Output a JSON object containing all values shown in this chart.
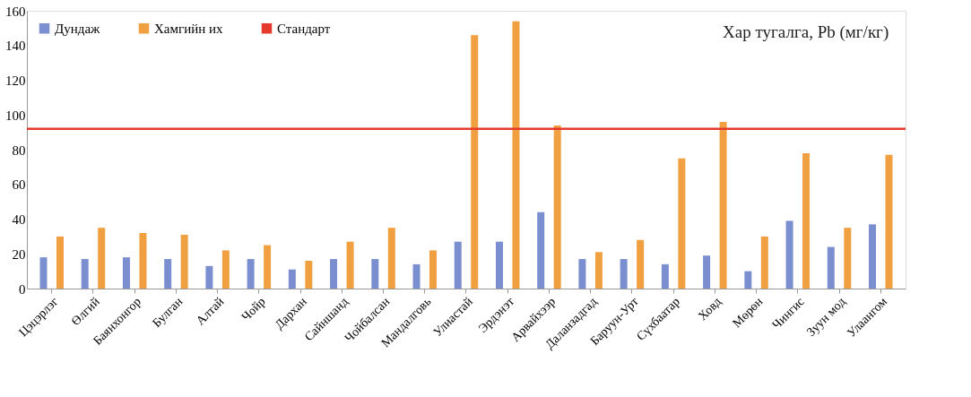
{
  "chart_data": {
    "type": "bar",
    "title": "Хар тугалга, Pb (мг/кг)",
    "categories": [
      "Цэцэрлэг",
      "Өлгий",
      "Баянхонгор",
      "Булган",
      "Алтай",
      "Чойр",
      "Дархан",
      "Сайншанд",
      "Чойбалсан",
      "Мандалговь",
      "Улиастай",
      "Эрдэнэт",
      "Арвайхээр",
      "Даланзадгад",
      "Баруун-Урт",
      "Сүхбаатар",
      "Ховд",
      "Мөрөн",
      "Чингис",
      "Зуун мод",
      "Улаангом"
    ],
    "series": [
      {
        "name": "Дундаж",
        "color": "#7b8fd0",
        "values": [
          18,
          17,
          18,
          17,
          13,
          17,
          11,
          17,
          17,
          14,
          27,
          27,
          44,
          17,
          17,
          14,
          19,
          10,
          39,
          24,
          37
        ]
      },
      {
        "name": "Хамгийн их",
        "color": "#f0a040",
        "values": [
          30,
          35,
          32,
          31,
          22,
          25,
          16,
          27,
          35,
          22,
          146,
          154,
          94,
          21,
          28,
          75,
          96,
          30,
          78,
          35,
          77
        ]
      }
    ],
    "ref_lines": [
      {
        "axis": "y",
        "value": 92,
        "label": "Стандарт",
        "color": "#e53a2c"
      }
    ],
    "ylim": [
      0,
      160
    ],
    "yticks": [
      0,
      20,
      40,
      60,
      80,
      100,
      120,
      140,
      160
    ],
    "grid": false,
    "legend": "top left"
  }
}
